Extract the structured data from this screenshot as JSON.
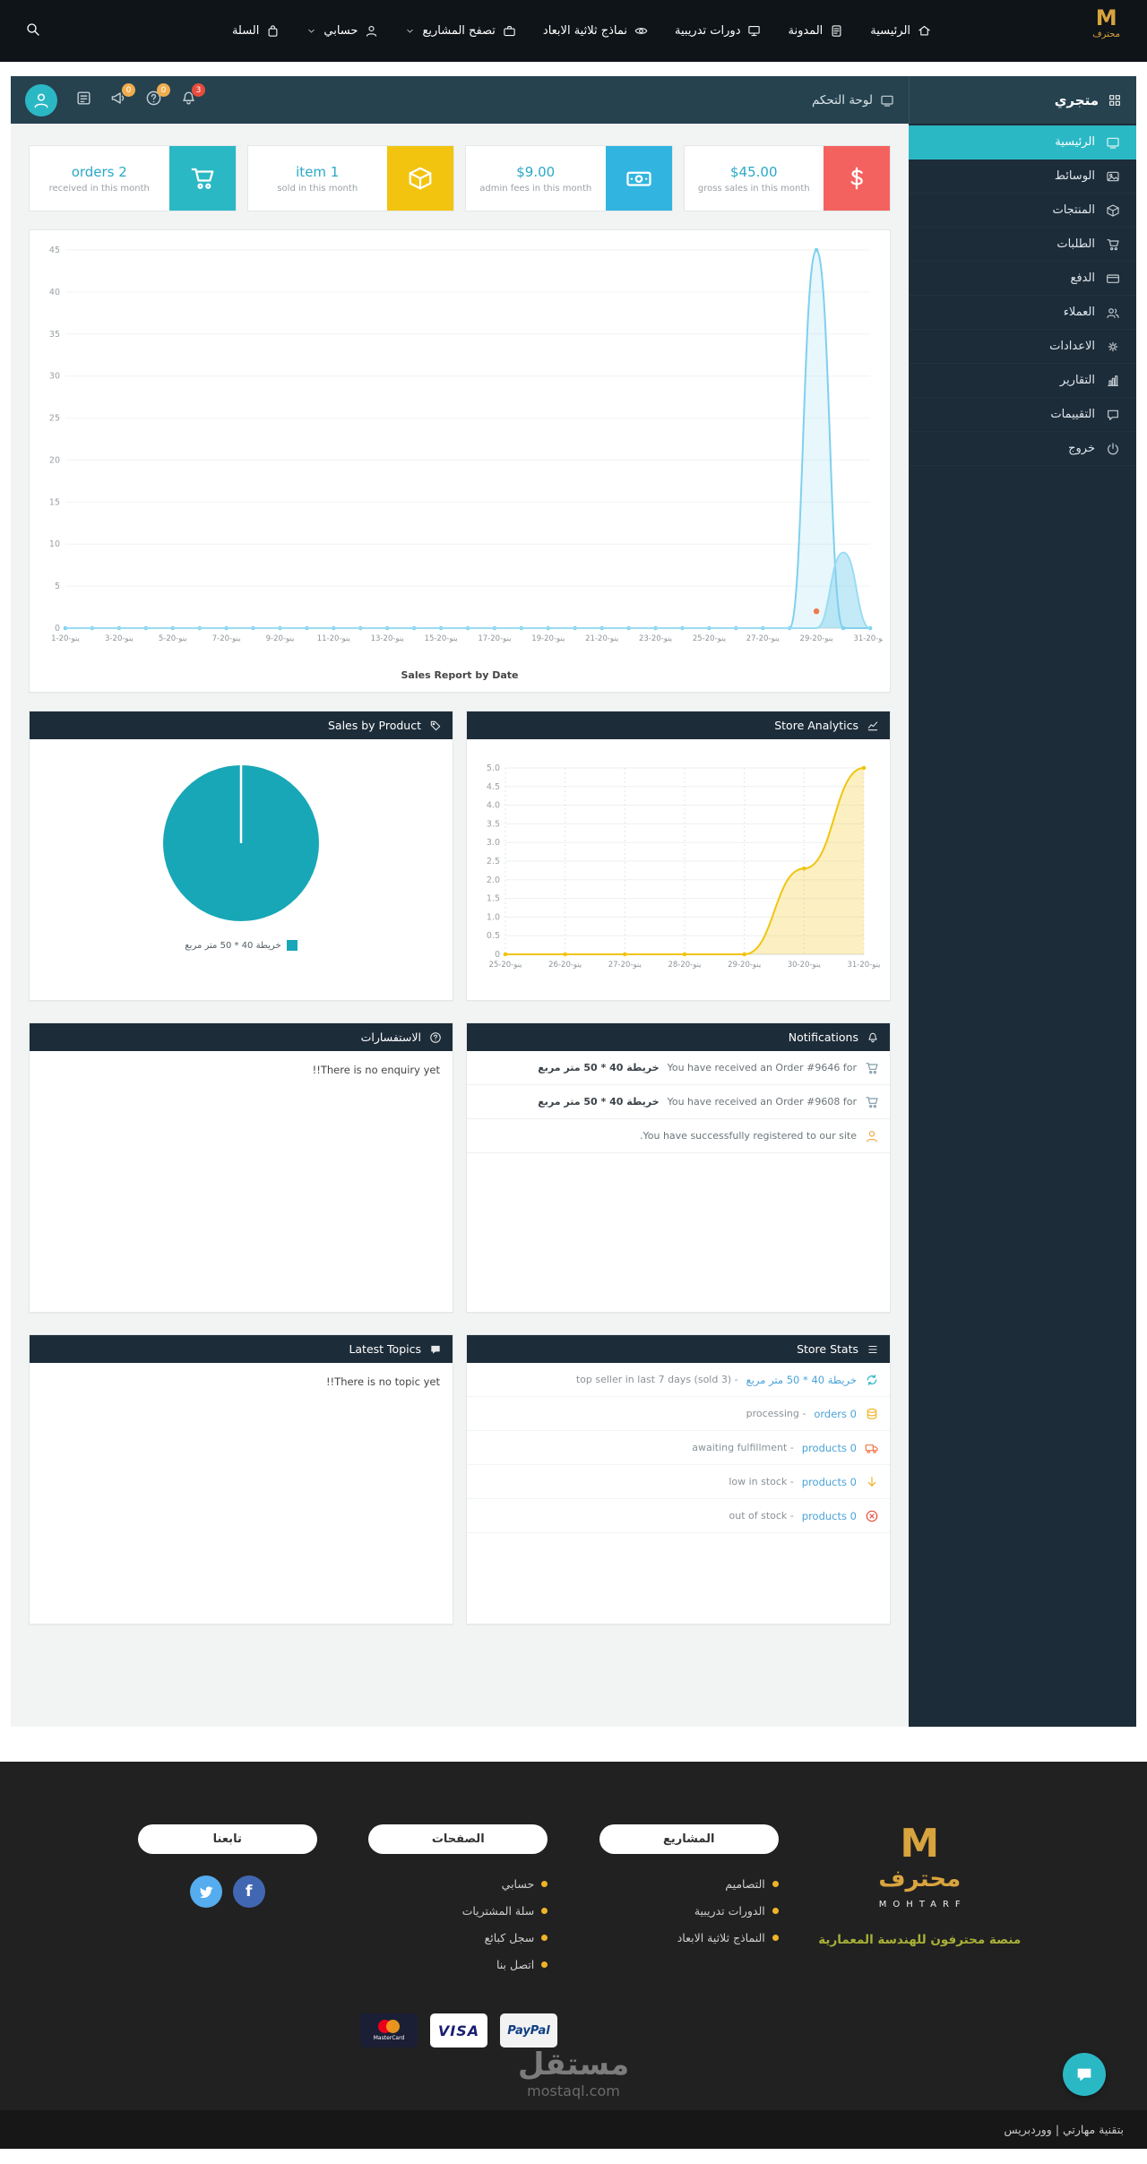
{
  "topnav": {
    "logo": {
      "mark": "M",
      "name": "محترف"
    },
    "items": [
      {
        "label": "الرئيسية",
        "icon": "home",
        "caret": false
      },
      {
        "label": "المدونة",
        "icon": "blog",
        "caret": false
      },
      {
        "label": "دورات تدريبية",
        "icon": "courses",
        "caret": false
      },
      {
        "label": "نماذج ثلاثية الابعاد",
        "icon": "models-3d",
        "caret": false
      },
      {
        "label": "تصفح المشاريع",
        "icon": "projects",
        "caret": true
      },
      {
        "label": "حسابي",
        "icon": "user",
        "caret": true
      },
      {
        "label": "السلة",
        "icon": "bag",
        "caret": false
      }
    ]
  },
  "dash_header": {
    "store_name": "متجري",
    "breadcrumb": "لوحة التحكم",
    "icons": [
      {
        "icon": "note",
        "badge": "",
        "badge_color": ""
      },
      {
        "icon": "megaphone",
        "badge": "0",
        "badge_color": "#f0ad4e"
      },
      {
        "icon": "question",
        "badge": "0",
        "badge_color": "#f0ad4e"
      },
      {
        "icon": "bell",
        "badge": "3",
        "badge_color": "#e74c3c"
      }
    ]
  },
  "sidebar": {
    "items": [
      {
        "label": "الرئيسية",
        "icon": "gauge",
        "active": true
      },
      {
        "label": "الوسائط",
        "icon": "image",
        "active": false
      },
      {
        "label": "المنتجات",
        "icon": "box",
        "active": false
      },
      {
        "label": "الطلبات",
        "icon": "cart",
        "active": false
      },
      {
        "label": "الدفع",
        "icon": "card",
        "active": false
      },
      {
        "label": "العملاء",
        "icon": "users",
        "active": false
      },
      {
        "label": "الاعدادات",
        "icon": "gears",
        "active": false
      },
      {
        "label": "التقارير",
        "icon": "chart",
        "active": false
      },
      {
        "label": "التقييمات",
        "icon": "comment",
        "active": false
      },
      {
        "label": "خروج",
        "icon": "power",
        "active": false
      }
    ]
  },
  "stats": [
    {
      "value": "orders 2",
      "label": "received in this month",
      "icon": "cart",
      "color": "#2bb8c5"
    },
    {
      "value": "item 1",
      "label": "sold in this month",
      "icon": "box",
      "color": "#f2c40f"
    },
    {
      "value": "$9.00",
      "label": "admin fees in this month",
      "icon": "banknote",
      "color": "#31b5e0"
    },
    {
      "value": "$45.00",
      "label": "gross sales in this month",
      "icon": "dollar",
      "color": "#f4625f"
    }
  ],
  "panels": {
    "sales_by_product": {
      "title": "Sales by Product",
      "icon": "tag"
    },
    "store_analytics": {
      "title": "Store Analytics",
      "icon": "analytics"
    },
    "enquiries": {
      "title": "الاستفسارات",
      "icon": "question",
      "empty": "There is no enquiry yet!!"
    },
    "notifications": {
      "title": "Notifications",
      "icon": "bell",
      "items": [
        {
          "icon": "cart",
          "color": "#7f9aa8",
          "text": "You have received an Order #9646 for",
          "product": "خريطة 40 * 50 متر مربع"
        },
        {
          "icon": "cart",
          "color": "#7f9aa8",
          "text": "You have received an Order #9608 for",
          "product": "خريطة 40 * 50 متر مربع"
        },
        {
          "icon": "user",
          "color": "#f0ad4e",
          "text": "You have successfully registered to our site.",
          "product": ""
        }
      ]
    },
    "latest_topics": {
      "title": "Latest Topics",
      "icon": "chat",
      "empty": "There is no topic yet!!"
    },
    "store_stats": {
      "title": "Store Stats",
      "icon": "list",
      "items": [
        {
          "icon": "sync",
          "color": "#2bb8c5",
          "link": "خريطة 40 * 50 متر مربع",
          "text": "- top seller in last 7 days (sold 3)"
        },
        {
          "icon": "coins",
          "color": "#f0b429",
          "link": "0 orders",
          "text": "- processing"
        },
        {
          "icon": "truck",
          "color": "#f2784b",
          "link": "0 products",
          "text": "- awaiting fulfillment"
        },
        {
          "icon": "arrow-down",
          "color": "#f0b429",
          "link": "0 products",
          "text": "- low in stock"
        },
        {
          "icon": "x-circle",
          "color": "#e74c3c",
          "link": "0 products",
          "text": "- out of stock"
        }
      ]
    }
  },
  "chart_data": [
    {
      "id": "sales_report",
      "type": "line",
      "title": "Sales Report by Date",
      "x_count": 31,
      "x_tick_labels": [
        "1-ينو-20",
        "3-ينو-20",
        "5-ينو-20",
        "7-ينو-20",
        "9-ينو-20",
        "11-ينو-20",
        "13-ينو-20",
        "15-ينو-20",
        "17-ينو-20",
        "19-ينو-20",
        "21-ينو-20",
        "23-ينو-20",
        "25-ينو-20",
        "27-ينو-20",
        "29-ينو-20",
        "31-ينو-20"
      ],
      "x_tick_idx": [
        0,
        2,
        4,
        6,
        8,
        10,
        12,
        14,
        16,
        18,
        20,
        22,
        24,
        26,
        28,
        30
      ],
      "ymax": 45,
      "yticks": [
        0,
        5,
        10,
        15,
        20,
        25,
        30,
        35,
        40,
        45
      ],
      "series": [
        {
          "name": "gross sales",
          "color": "#7fd0ee",
          "fill": "rgba(127,208,238,0.18)",
          "dots": true,
          "values": [
            0,
            0,
            0,
            0,
            0,
            0,
            0,
            0,
            0,
            0,
            0,
            0,
            0,
            0,
            0,
            0,
            0,
            0,
            0,
            0,
            0,
            0,
            0,
            0,
            0,
            0,
            0,
            0,
            45,
            0,
            0
          ]
        },
        {
          "name": "admin fees",
          "color": "#9adcf2",
          "fill": "rgba(127,208,238,0.45)",
          "dots": false,
          "values": [
            0,
            0,
            0,
            0,
            0,
            0,
            0,
            0,
            0,
            0,
            0,
            0,
            0,
            0,
            0,
            0,
            0,
            0,
            0,
            0,
            0,
            0,
            0,
            0,
            0,
            0,
            0,
            0,
            0,
            9,
            0
          ]
        },
        {
          "name": "orders",
          "color": "#f2784b",
          "points_only": true,
          "values": [
            0,
            0,
            0,
            0,
            0,
            0,
            0,
            0,
            0,
            0,
            0,
            0,
            0,
            0,
            0,
            0,
            0,
            0,
            0,
            0,
            0,
            0,
            0,
            0,
            0,
            0,
            0,
            0,
            2,
            0,
            0
          ]
        }
      ]
    },
    {
      "id": "store_analytics",
      "type": "line",
      "title": "Store Analytics",
      "x_count": 7,
      "x_tick_labels": [
        "25-ينو-20",
        "26-ينو-20",
        "27-ينو-20",
        "28-ينو-20",
        "29-ينو-20",
        "30-ينو-20",
        "31-ينو-20"
      ],
      "ymax": 5,
      "yticks": [
        0,
        0.5,
        1,
        1.5,
        2,
        2.5,
        3,
        3.5,
        4,
        4.5,
        5
      ],
      "series": [
        {
          "name": "views",
          "color": "#f2c40f",
          "fill": "rgba(242,196,15,0.25)",
          "dots": true,
          "values": [
            0,
            0,
            0,
            0,
            0,
            2.3,
            5
          ]
        }
      ]
    },
    {
      "id": "sales_by_product",
      "type": "pie",
      "slices": [
        {
          "label": "خريطة 40 * 50 متر مربع",
          "value": 100,
          "color": "#18a7b7"
        }
      ]
    }
  ],
  "footer": {
    "logo": {
      "mark": "M",
      "name": "محترف",
      "sub": "MOHTARF",
      "tagline": "منصة محترفون للهندسة المعمارية"
    },
    "projects": {
      "title": "المشاريع",
      "links": [
        "التصاميم",
        "الدورات تدريبية",
        "النماذج ثلاثية الابعاد"
      ]
    },
    "pages": {
      "title": "الصفحات",
      "links": [
        "حسابي",
        "سلة المشتريات",
        "سجل كبائع",
        "اتصل بنا"
      ]
    },
    "follow": {
      "title": "تابعنا",
      "facebook": "f"
    },
    "payments": [
      "MasterCard",
      "VISA",
      "PayPal"
    ],
    "watermark": {
      "title": "مستقل",
      "domain": "mostaql.com"
    },
    "powered": "بتقنية مهارتي | ووردبريس"
  }
}
